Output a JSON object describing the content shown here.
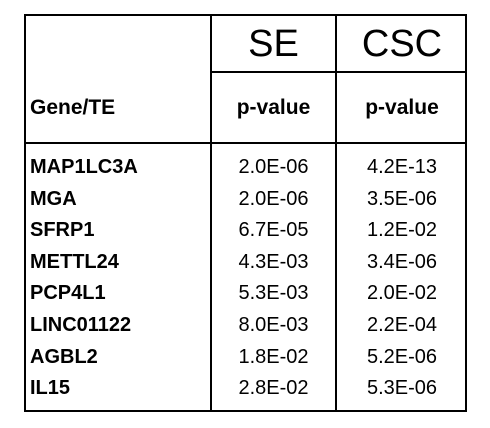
{
  "table": {
    "group_headers": {
      "se": "SE",
      "csc": "CSC"
    },
    "column_headers": {
      "gene": "Gene/TE",
      "se_pvalue": "p-value",
      "csc_pvalue": "p-value"
    },
    "rows": [
      {
        "gene": "MAP1LC3A",
        "se": "2.0E-06",
        "csc": "4.2E-13"
      },
      {
        "gene": "MGA",
        "se": "2.0E-06",
        "csc": "3.5E-06"
      },
      {
        "gene": "SFRP1",
        "se": "6.7E-05",
        "csc": "1.2E-02"
      },
      {
        "gene": "METTL24",
        "se": "4.3E-03",
        "csc": "3.4E-06"
      },
      {
        "gene": "PCP4L1",
        "se": "5.3E-03",
        "csc": "2.0E-02"
      },
      {
        "gene": "LINC01122",
        "se": "8.0E-03",
        "csc": "2.2E-04"
      },
      {
        "gene": "AGBL2",
        "se": "1.8E-02",
        "csc": "5.2E-06"
      },
      {
        "gene": "IL15",
        "se": "2.8E-02",
        "csc": "5.3E-06"
      }
    ]
  }
}
